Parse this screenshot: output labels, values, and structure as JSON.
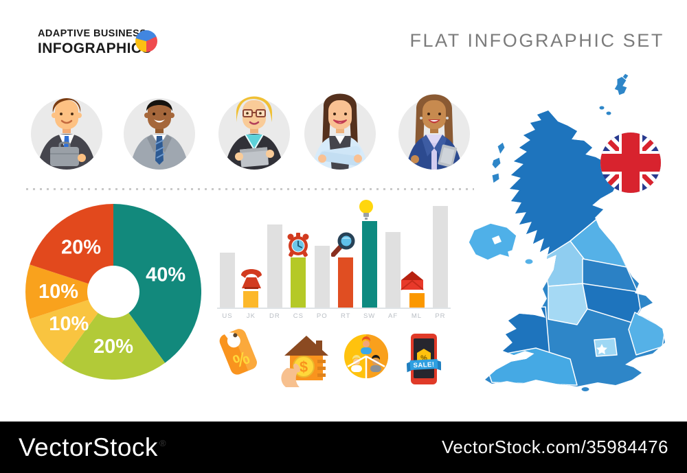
{
  "header": {
    "logo_line1": "ADAPTIVE BUSINESS",
    "logo_line2": "INFOGRAPHICS",
    "logo_pie_colors": [
      "#4186e0",
      "#ef4b4e",
      "#fcbf12"
    ],
    "title": "FLAT INFOGRAPHIC SET"
  },
  "avatars": [
    {
      "icon": "businessman-briefcase-avatar"
    },
    {
      "icon": "businessman-gray-suit-avatar"
    },
    {
      "icon": "businesswoman-glasses-laptop-avatar"
    },
    {
      "icon": "businesswoman-crossed-arms-avatar"
    },
    {
      "icon": "businesswoman-tablet-avatar"
    }
  ],
  "chart_data": [
    {
      "type": "pie",
      "subtype": "donut",
      "title": "",
      "values": [
        40,
        20,
        10,
        10,
        20
      ],
      "labels": [
        "40%",
        "20%",
        "10%",
        "10%",
        "20%"
      ],
      "colors": [
        "#12897c",
        "#b2ca38",
        "#f9c440",
        "#f9a21d",
        "#e2491d"
      ],
      "start_angle_deg": 0,
      "direction": "clockwise",
      "hole_ratio": 0.3,
      "label_color": "#ffffff"
    },
    {
      "type": "bar",
      "title": "",
      "categories": [
        "US",
        "JK",
        "DR",
        "CS",
        "PO",
        "RT",
        "SW",
        "AF",
        "ML",
        "PR"
      ],
      "values": [
        54,
        16,
        82,
        49,
        61,
        49,
        85,
        74,
        14,
        100
      ],
      "ylim": [
        0,
        100
      ],
      "gridlines": false,
      "axis_labels_color": "#b9bec4",
      "colors": [
        "#e0e0e0",
        "#fcb82b",
        "#e0e0e0",
        "#b5c927",
        "#e0e0e0",
        "#e04e22",
        "#0d8a80",
        "#e0e0e0",
        "#fb9800",
        "#e0e0e0"
      ],
      "marker_icons": [
        {
          "category": "JK",
          "icon": "phone-icon"
        },
        {
          "category": "CS",
          "icon": "alarm-clock-icon"
        },
        {
          "category": "RT",
          "icon": "magnifier-icon"
        },
        {
          "category": "SW",
          "icon": "lightbulb-icon"
        },
        {
          "category": "ML",
          "icon": "envelope-icon"
        }
      ]
    }
  ],
  "promo_icons": {
    "names": [
      "discount-tag-icon",
      "house-purchase-icon",
      "team-share-icon",
      "phone-sale-icon"
    ],
    "tag_percent_label": "%",
    "house_dollar_label": "$",
    "phone_sale_label": "SALE!",
    "phone_badge_percent": "%"
  },
  "map": {
    "name": "united-kingdom-map",
    "flag": "united-kingdom-flag",
    "star_marker": "london-star"
  },
  "footer": {
    "brand": "VectorStock",
    "registered_mark": "®",
    "image_url_text": "VectorStock.com/35984476"
  }
}
